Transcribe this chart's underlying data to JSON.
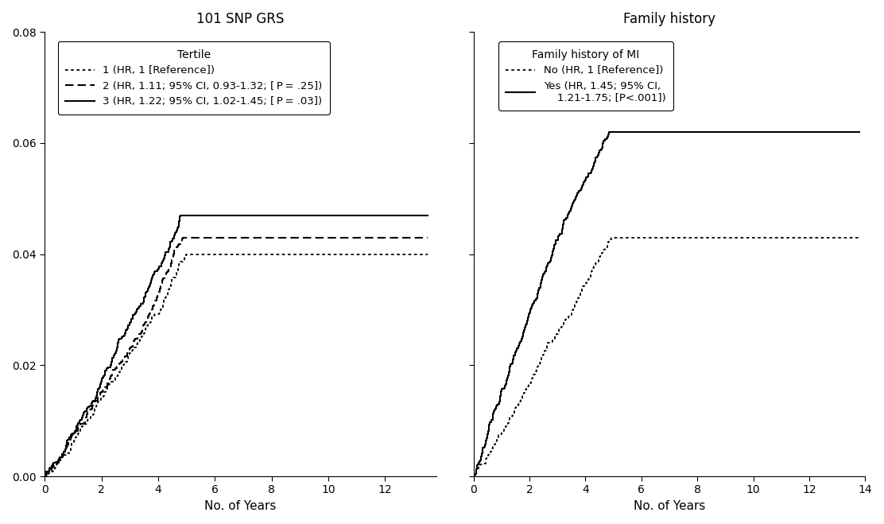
{
  "left_title": "101 SNP GRS",
  "right_title": "Family history",
  "xlabel": "No. of Years",
  "ylim": [
    0,
    0.08
  ],
  "left_xlim": [
    0,
    13.8
  ],
  "right_xlim": [
    0,
    14
  ],
  "left_xticks": [
    0,
    2,
    4,
    6,
    8,
    10,
    12
  ],
  "right_xticks": [
    0,
    2,
    4,
    6,
    8,
    10,
    12,
    14
  ],
  "yticks": [
    0,
    0.02,
    0.04,
    0.06,
    0.08
  ],
  "left_legend_title": "Tertile",
  "right_legend_title": "Family history of MI",
  "background_color": "#ffffff",
  "line_color": "#000000",
  "font_size": 11,
  "title_font_size": 12,
  "left_curves": [
    {
      "final_val": 0.04,
      "n_years": 13.5,
      "n_events": 200,
      "steepness": 1.1,
      "seed": 11
    },
    {
      "final_val": 0.043,
      "n_years": 13.5,
      "n_events": 215,
      "steepness": 1.1,
      "seed": 21
    },
    {
      "final_val": 0.047,
      "n_years": 13.5,
      "n_events": 235,
      "steepness": 1.1,
      "seed": 31
    }
  ],
  "right_curves": [
    {
      "final_val": 0.043,
      "n_years": 13.8,
      "n_events": 220,
      "steepness": 1.05,
      "seed": 12
    },
    {
      "final_val": 0.062,
      "n_years": 13.8,
      "n_events": 280,
      "steepness": 1.05,
      "seed": 22
    }
  ]
}
